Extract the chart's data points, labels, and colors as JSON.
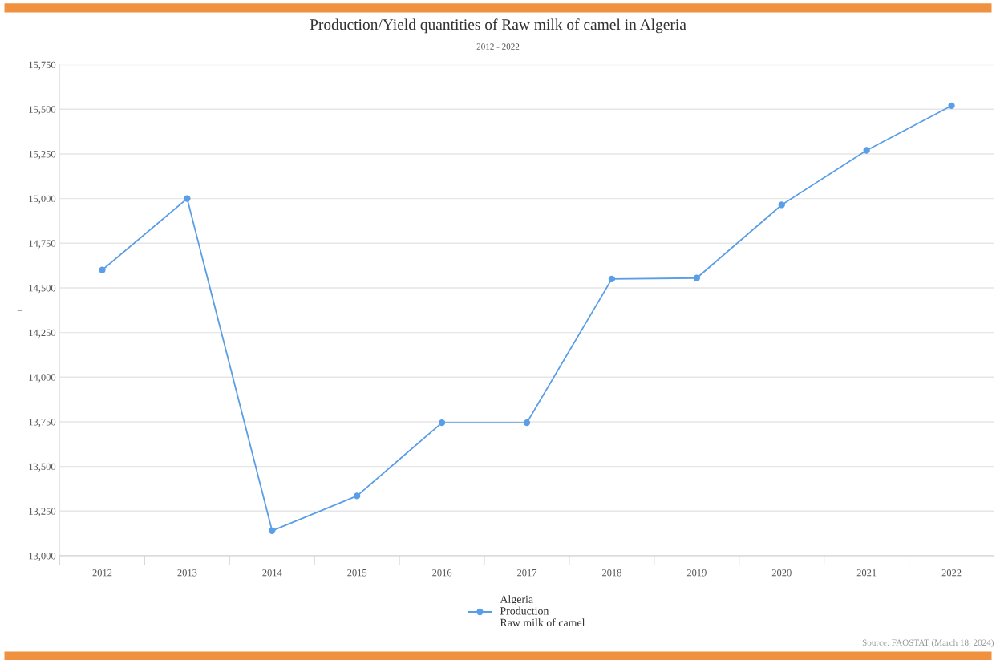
{
  "chart_data": {
    "type": "line",
    "title": "Production/Yield quantities of Raw milk of camel in Algeria",
    "subtitle": "2012 - 2022",
    "ylabel": "t",
    "categories": [
      "2012",
      "2013",
      "2014",
      "2015",
      "2016",
      "2017",
      "2018",
      "2019",
      "2020",
      "2021",
      "2022"
    ],
    "series": [
      {
        "name": "Algeria\nProduction\nRaw milk of camel",
        "color": "#5a9ee8",
        "values": [
          14600,
          15000,
          13140,
          13335,
          13745,
          13745,
          14550,
          14555,
          14965,
          15270,
          15520
        ]
      }
    ],
    "ylim": [
      13000,
      15750
    ],
    "yticks": [
      {
        "value": 13000,
        "label": "13,000"
      },
      {
        "value": 13250,
        "label": "13,250"
      },
      {
        "value": 13500,
        "label": "13,500"
      },
      {
        "value": 13750,
        "label": "13,750"
      },
      {
        "value": 14000,
        "label": "14,000"
      },
      {
        "value": 14250,
        "label": "14,250"
      },
      {
        "value": 14500,
        "label": "14,500"
      },
      {
        "value": 14750,
        "label": "14,750"
      },
      {
        "value": 15000,
        "label": "15,000"
      },
      {
        "value": 15250,
        "label": "15,250"
      },
      {
        "value": 15500,
        "label": "15,500"
      },
      {
        "value": 15750,
        "label": "15,750"
      }
    ],
    "grid": "y",
    "legend": "bottom",
    "marker": "circle",
    "line_style": "solid",
    "annotations": [
      "Source: FAOSTAT (March 18, 2024)"
    ]
  }
}
